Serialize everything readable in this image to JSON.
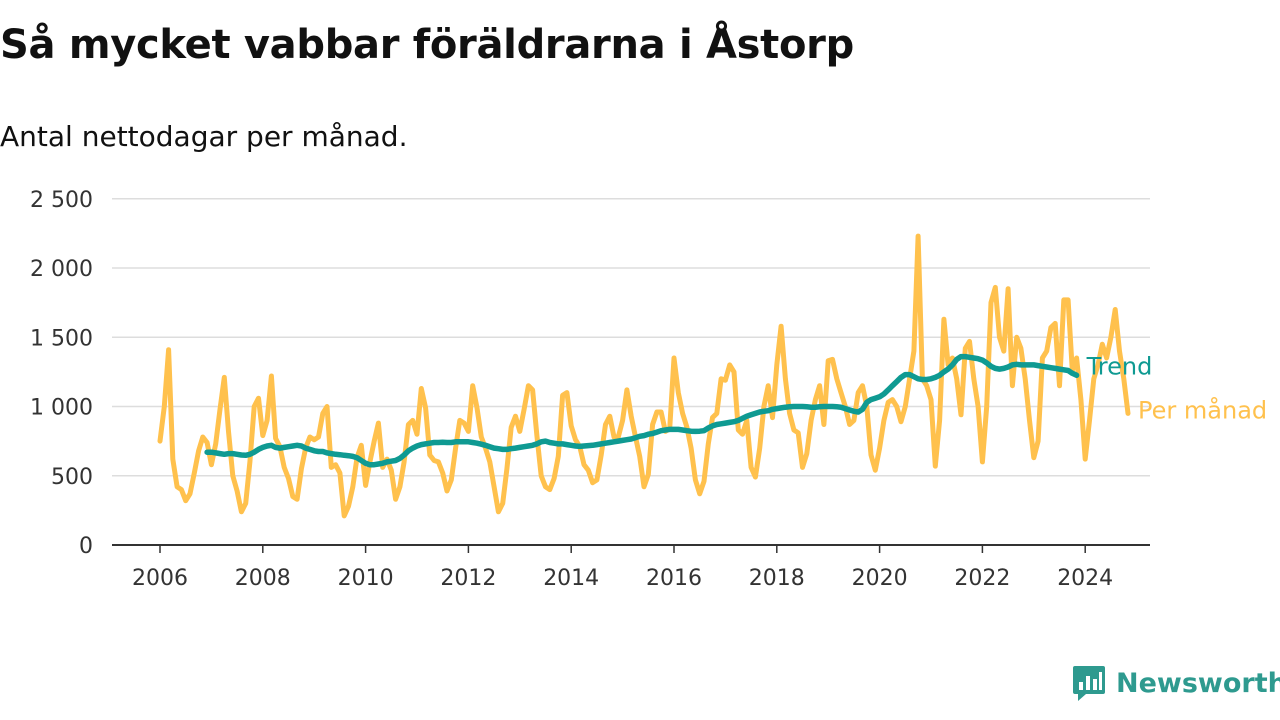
{
  "title": "Så mycket vabbar föräldrarna i Åstorp",
  "subtitle": "Antal nettodagar per månad.",
  "brand": {
    "name": "Newsworthy",
    "icon": "newsworthy-logo-icon",
    "color": "#2e9a8f"
  },
  "chart_data": {
    "type": "line",
    "title": "Så mycket vabbar föräldrarna i Åstorp",
    "subtitle": "Antal nettodagar per månad.",
    "xlabel": "",
    "ylabel": "",
    "xlim": [
      2006,
      2024.4
    ],
    "ylim": [
      0,
      2500
    ],
    "x_ticks": [
      2006,
      2008,
      2010,
      2012,
      2014,
      2016,
      2018,
      2020,
      2022,
      2024
    ],
    "x_tick_labels": [
      "2006",
      "2008",
      "2010",
      "2012",
      "2014",
      "2016",
      "2018",
      "2020",
      "2022",
      "2024"
    ],
    "y_ticks": [
      0,
      500,
      1000,
      1500,
      2000,
      2500
    ],
    "y_tick_labels": [
      "0",
      "500",
      "1 000",
      "1 500",
      "2 000",
      "2 500"
    ],
    "grid": true,
    "legend": "end-of-line labels, right",
    "series": [
      {
        "name": "Per månad",
        "color": "#ffc14d",
        "start": "2006-01",
        "values": [
          750,
          1000,
          1410,
          620,
          420,
          400,
          320,
          370,
          520,
          680,
          780,
          740,
          580,
          730,
          980,
          1210,
          820,
          500,
          390,
          240,
          300,
          600,
          1000,
          1060,
          790,
          900,
          1220,
          770,
          710,
          560,
          480,
          350,
          330,
          550,
          700,
          780,
          760,
          780,
          950,
          1000,
          560,
          580,
          520,
          210,
          280,
          420,
          630,
          720,
          430,
          600,
          750,
          880,
          560,
          620,
          540,
          330,
          420,
          600,
          870,
          900,
          800,
          1130,
          990,
          650,
          610,
          600,
          520,
          390,
          470,
          700,
          900,
          880,
          820,
          1150,
          990,
          780,
          700,
          600,
          420,
          240,
          300,
          550,
          850,
          930,
          820,
          980,
          1150,
          1120,
          790,
          500,
          420,
          400,
          480,
          640,
          1080,
          1100,
          860,
          760,
          710,
          580,
          540,
          450,
          470,
          650,
          870,
          930,
          780,
          780,
          900,
          1120,
          930,
          780,
          640,
          420,
          510,
          870,
          960,
          960,
          820,
          840,
          1350,
          1100,
          950,
          850,
          700,
          470,
          370,
          460,
          730,
          920,
          950,
          1200,
          1190,
          1300,
          1250,
          830,
          800,
          900,
          560,
          490,
          700,
          1000,
          1150,
          920,
          1300,
          1580,
          1200,
          950,
          830,
          810,
          560,
          660,
          900,
          1050,
          1150,
          870,
          1330,
          1340,
          1200,
          1100,
          1000,
          870,
          900,
          1100,
          1150,
          1000,
          650,
          540,
          700,
          900,
          1030,
          1050,
          1000,
          890,
          1000,
          1200,
          1400,
          2230,
          1200,
          1150,
          1050,
          570,
          900,
          1630,
          1300,
          1350,
          1200,
          940,
          1420,
          1470,
          1200,
          1000,
          600,
          1000,
          1750,
          1860,
          1500,
          1400,
          1850,
          1150,
          1500,
          1420,
          1200,
          900,
          630,
          750,
          1350,
          1400,
          1570,
          1600,
          1150,
          1770,
          1770,
          1260,
          1350,
          1050,
          620,
          900,
          1200,
          1300,
          1450,
          1350,
          1500,
          1700,
          1400,
          1200,
          950
        ]
      },
      {
        "name": "Trend",
        "color": "#0f9a92",
        "start": "2006-12",
        "values": [
          670,
          670,
          665,
          660,
          655,
          660,
          660,
          655,
          650,
          648,
          655,
          670,
          690,
          705,
          715,
          720,
          705,
          700,
          705,
          710,
          715,
          720,
          715,
          700,
          690,
          680,
          675,
          675,
          665,
          660,
          655,
          652,
          648,
          645,
          640,
          630,
          610,
          590,
          580,
          580,
          585,
          590,
          600,
          605,
          610,
          625,
          650,
          680,
          700,
          715,
          725,
          730,
          735,
          740,
          740,
          742,
          740,
          740,
          745,
          745,
          745,
          745,
          740,
          735,
          728,
          720,
          710,
          700,
          695,
          690,
          690,
          695,
          700,
          705,
          710,
          715,
          720,
          730,
          745,
          750,
          740,
          735,
          730,
          730,
          725,
          720,
          715,
          712,
          715,
          718,
          720,
          725,
          730,
          735,
          740,
          745,
          750,
          755,
          760,
          765,
          775,
          785,
          790,
          800,
          805,
          815,
          825,
          830,
          835,
          835,
          835,
          830,
          825,
          822,
          820,
          822,
          825,
          845,
          860,
          870,
          875,
          880,
          885,
          890,
          900,
          915,
          930,
          940,
          950,
          960,
          965,
          970,
          980,
          985,
          990,
          995,
          998,
          1000,
          1000,
          1000,
          998,
          995,
          995,
          998,
          1000,
          1000,
          1000,
          998,
          995,
          985,
          975,
          965,
          960,
          980,
          1030,
          1050,
          1060,
          1070,
          1090,
          1120,
          1150,
          1180,
          1210,
          1230,
          1230,
          1215,
          1200,
          1195,
          1195,
          1200,
          1210,
          1225,
          1250,
          1270,
          1300,
          1340,
          1360,
          1360,
          1355,
          1350,
          1345,
          1335,
          1315,
          1290,
          1275,
          1270,
          1275,
          1285,
          1300,
          1305,
          1300,
          1300,
          1300,
          1300,
          1295,
          1290,
          1285,
          1280,
          1275,
          1270,
          1265,
          1260,
          1240,
          1225
        ]
      }
    ]
  }
}
